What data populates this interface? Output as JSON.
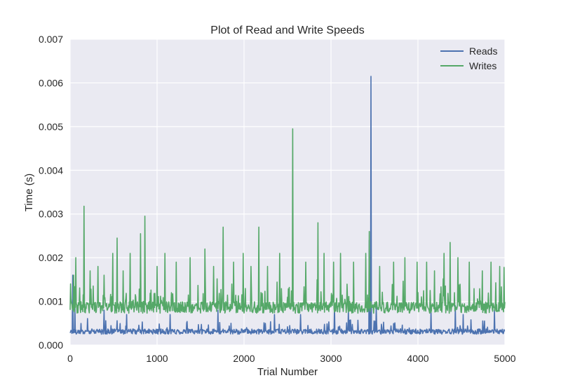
{
  "chart_data": {
    "type": "line",
    "title": "Plot of Read and Write Speeds",
    "xlabel": "Trial Number",
    "ylabel": "Time (s)",
    "xlim": [
      0,
      5000
    ],
    "ylim": [
      0,
      0.007
    ],
    "xticks": [
      0,
      1000,
      2000,
      3000,
      4000,
      5000
    ],
    "yticks": [
      "0.000",
      "0.001",
      "0.002",
      "0.003",
      "0.004",
      "0.005",
      "0.006",
      "0.007"
    ],
    "grid": true,
    "legend_position": "top-right",
    "series": [
      {
        "name": "Reads",
        "color": "#4c72b0",
        "baseline": 0.0003,
        "spikes": [
          [
            30,
            0.0016
          ],
          [
            55,
            0.0009
          ],
          [
            390,
            0.0008
          ],
          [
            650,
            0.0007
          ],
          [
            1150,
            0.0007
          ],
          [
            1700,
            0.0008
          ],
          [
            2350,
            0.0007
          ],
          [
            2650,
            0.0007
          ],
          [
            3040,
            0.0009
          ],
          [
            3200,
            0.0008
          ],
          [
            3440,
            0.0024
          ],
          [
            3460,
            0.00615
          ],
          [
            3520,
            0.0009
          ],
          [
            4150,
            0.0008
          ],
          [
            4430,
            0.0009
          ],
          [
            4520,
            0.0007
          ],
          [
            4880,
            0.0008
          ]
        ]
      },
      {
        "name": "Writes",
        "color": "#55a868",
        "baseline": 0.00085,
        "spikes": [
          [
            5,
            0.0014
          ],
          [
            40,
            0.0016
          ],
          [
            65,
            0.002
          ],
          [
            160,
            0.00318
          ],
          [
            230,
            0.0017
          ],
          [
            320,
            0.0018
          ],
          [
            390,
            0.0016
          ],
          [
            490,
            0.0021
          ],
          [
            540,
            0.00245
          ],
          [
            610,
            0.0017
          ],
          [
            690,
            0.0021
          ],
          [
            810,
            0.00255
          ],
          [
            860,
            0.00295
          ],
          [
            1000,
            0.0018
          ],
          [
            1090,
            0.0021
          ],
          [
            1220,
            0.0019
          ],
          [
            1380,
            0.002
          ],
          [
            1550,
            0.0022
          ],
          [
            1650,
            0.0018
          ],
          [
            1760,
            0.0027
          ],
          [
            1880,
            0.0019
          ],
          [
            1990,
            0.0021
          ],
          [
            2080,
            0.0018
          ],
          [
            2170,
            0.0027
          ],
          [
            2270,
            0.0018
          ],
          [
            2410,
            0.0021
          ],
          [
            2560,
            0.00495
          ],
          [
            2710,
            0.0019
          ],
          [
            2850,
            0.0028
          ],
          [
            2920,
            0.0021
          ],
          [
            3030,
            0.0019
          ],
          [
            3110,
            0.0021
          ],
          [
            3260,
            0.0019
          ],
          [
            3400,
            0.0021
          ],
          [
            3440,
            0.0026
          ],
          [
            3560,
            0.0018
          ],
          [
            3720,
            0.0019
          ],
          [
            3850,
            0.002
          ],
          [
            3990,
            0.0019
          ],
          [
            4100,
            0.0019
          ],
          [
            4190,
            0.0017
          ],
          [
            4300,
            0.0021
          ],
          [
            4370,
            0.00235
          ],
          [
            4460,
            0.002
          ],
          [
            4590,
            0.0019
          ],
          [
            4740,
            0.0017
          ],
          [
            4840,
            0.0019
          ],
          [
            4940,
            0.0018
          ],
          [
            4990,
            0.00178
          ]
        ]
      }
    ]
  }
}
